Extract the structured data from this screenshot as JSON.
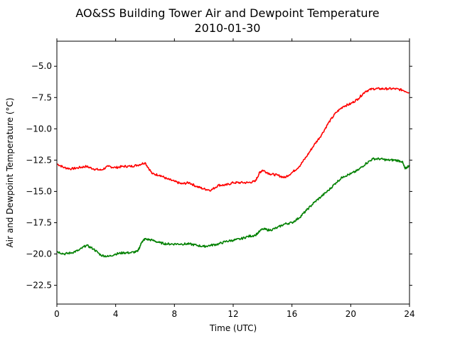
{
  "chart_data": {
    "type": "line",
    "title": "AO&SS Building Tower Air and Dewpoint Temperature",
    "subtitle": "2010-01-30",
    "xlabel": "Time (UTC)",
    "ylabel": "Air and Dewpoint Temperature (°C)",
    "xlim": [
      0,
      24
    ],
    "ylim": [
      -24,
      -3
    ],
    "xticks": [
      0,
      4,
      8,
      12,
      16,
      20,
      24
    ],
    "xtick_labels": [
      "0",
      "4",
      "8",
      "12",
      "16",
      "20",
      "24"
    ],
    "yticks": [
      -5.0,
      -7.5,
      -10.0,
      -12.5,
      -15.0,
      -17.5,
      -20.0,
      -22.5
    ],
    "ytick_labels": [
      "−5.0",
      "−7.5",
      "−10.0",
      "−12.5",
      "−15.0",
      "−17.5",
      "−20.0",
      "−22.5"
    ],
    "grid": false,
    "legend": "none",
    "series": [
      {
        "color": "#ff0000",
        "x": [
          0,
          0.5,
          1,
          1.5,
          2,
          2.5,
          3,
          3.5,
          4,
          4.5,
          5,
          5.5,
          6,
          6.5,
          7,
          7.5,
          8,
          8.5,
          9,
          9.5,
          10,
          10.5,
          11,
          11.5,
          12,
          12.5,
          13,
          13.5,
          13.8,
          14,
          14.5,
          15,
          15.5,
          16,
          16.5,
          17,
          17.5,
          18,
          18.5,
          19,
          19.5,
          20,
          20.5,
          21,
          21.5,
          22,
          22.5,
          23,
          23.5,
          24
        ],
        "values": [
          -12.8,
          -13.1,
          -13.2,
          -13.1,
          -13.0,
          -13.2,
          -13.3,
          -13.0,
          -13.1,
          -13.0,
          -13.0,
          -12.9,
          -12.7,
          -13.6,
          -13.7,
          -14.0,
          -14.2,
          -14.4,
          -14.3,
          -14.6,
          -14.8,
          -14.9,
          -14.5,
          -14.5,
          -14.3,
          -14.3,
          -14.3,
          -14.2,
          -13.5,
          -13.3,
          -13.6,
          -13.7,
          -13.9,
          -13.5,
          -13.0,
          -12.2,
          -11.3,
          -10.5,
          -9.5,
          -8.7,
          -8.2,
          -8.0,
          -7.6,
          -7.0,
          -6.8,
          -6.8,
          -6.8,
          -6.8,
          -6.9,
          -7.1
        ]
      },
      {
        "color": "#008000",
        "x": [
          0,
          0.5,
          1,
          1.5,
          2,
          2.5,
          3,
          3.5,
          4,
          4.5,
          5,
          5.5,
          5.8,
          6,
          6.5,
          7,
          7.5,
          8,
          8.5,
          9,
          9.5,
          10,
          10.5,
          11,
          11.5,
          12,
          12.5,
          13,
          13.5,
          14,
          14.5,
          15,
          15.5,
          16,
          16.5,
          17,
          17.5,
          18,
          18.5,
          19,
          19.5,
          20,
          20.5,
          21,
          21.5,
          22,
          22.5,
          23,
          23.5,
          23.7,
          24
        ],
        "values": [
          -19.8,
          -20.0,
          -19.9,
          -19.7,
          -19.3,
          -19.6,
          -20.1,
          -20.2,
          -20.0,
          -19.9,
          -19.9,
          -19.8,
          -19.0,
          -18.8,
          -18.9,
          -19.1,
          -19.2,
          -19.2,
          -19.2,
          -19.2,
          -19.3,
          -19.4,
          -19.3,
          -19.2,
          -19.0,
          -18.9,
          -18.8,
          -18.6,
          -18.5,
          -18.0,
          -18.1,
          -17.9,
          -17.6,
          -17.5,
          -17.1,
          -16.5,
          -15.9,
          -15.4,
          -14.9,
          -14.3,
          -13.8,
          -13.6,
          -13.3,
          -12.8,
          -12.4,
          -12.4,
          -12.5,
          -12.5,
          -12.6,
          -13.2,
          -12.9
        ]
      }
    ]
  }
}
